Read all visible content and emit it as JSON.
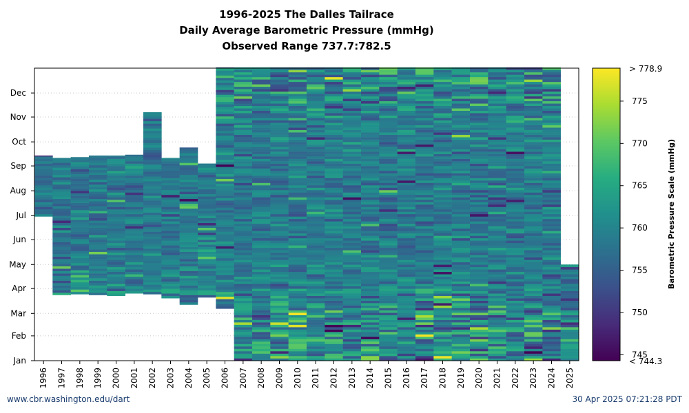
{
  "chart_data": {
    "type": "heatmap",
    "title": "1996-2025 The Dalles Tailrace",
    "subtitle": "Daily Average Barometric Pressure (mmHg)",
    "range_label": "Observed Range 737.7:782.5",
    "x_categories": [
      "1996",
      "1997",
      "1998",
      "1999",
      "2000",
      "2001",
      "2002",
      "2003",
      "2004",
      "2005",
      "2006",
      "2007",
      "2008",
      "2009",
      "2010",
      "2011",
      "2012",
      "2013",
      "2014",
      "2015",
      "2016",
      "2017",
      "2018",
      "2019",
      "2020",
      "2021",
      "2022",
      "2023",
      "2024",
      "2025"
    ],
    "y_ticks": [
      "Jan",
      "Feb",
      "Mar",
      "Apr",
      "May",
      "Jun",
      "Jul",
      "Aug",
      "Sep",
      "Oct",
      "Nov",
      "Dec"
    ],
    "y_tick_doy": [
      1,
      32,
      60,
      91,
      121,
      152,
      182,
      213,
      244,
      274,
      305,
      335
    ],
    "y_range": [
      1,
      366
    ],
    "grid": "horizontal dotted at month ticks",
    "coverage": [
      {
        "year": "1996",
        "start_doy": 181,
        "end_doy": 256
      },
      {
        "year": "1997",
        "start_doy": 83,
        "end_doy": 253
      },
      {
        "year": "1998",
        "start_doy": 84,
        "end_doy": 254
      },
      {
        "year": "1999",
        "start_doy": 83,
        "end_doy": 256
      },
      {
        "year": "2000",
        "start_doy": 82,
        "end_doy": 256
      },
      {
        "year": "2001",
        "start_doy": 85,
        "end_doy": 257
      },
      {
        "year": "2002",
        "start_doy": 84,
        "end_doy": 310
      },
      {
        "year": "2003",
        "start_doy": 79,
        "end_doy": 253
      },
      {
        "year": "2004",
        "start_doy": 71,
        "end_doy": 266
      },
      {
        "year": "2005",
        "start_doy": 80,
        "end_doy": 246
      },
      {
        "year": "2006",
        "start_doy": 66,
        "end_doy": 366
      },
      {
        "year": "2007",
        "start_doy": 1,
        "end_doy": 366
      },
      {
        "year": "2008",
        "start_doy": 1,
        "end_doy": 366
      },
      {
        "year": "2009",
        "start_doy": 1,
        "end_doy": 366
      },
      {
        "year": "2010",
        "start_doy": 1,
        "end_doy": 366
      },
      {
        "year": "2011",
        "start_doy": 1,
        "end_doy": 366
      },
      {
        "year": "2012",
        "start_doy": 1,
        "end_doy": 366
      },
      {
        "year": "2013",
        "start_doy": 1,
        "end_doy": 366
      },
      {
        "year": "2014",
        "start_doy": 1,
        "end_doy": 366
      },
      {
        "year": "2015",
        "start_doy": 1,
        "end_doy": 366
      },
      {
        "year": "2016",
        "start_doy": 1,
        "end_doy": 366
      },
      {
        "year": "2017",
        "start_doy": 1,
        "end_doy": 366
      },
      {
        "year": "2018",
        "start_doy": 1,
        "end_doy": 366
      },
      {
        "year": "2019",
        "start_doy": 1,
        "end_doy": 366
      },
      {
        "year": "2020",
        "start_doy": 1,
        "end_doy": 366
      },
      {
        "year": "2021",
        "start_doy": 1,
        "end_doy": 366
      },
      {
        "year": "2022",
        "start_doy": 1,
        "end_doy": 366
      },
      {
        "year": "2023",
        "start_doy": 1,
        "end_doy": 366
      },
      {
        "year": "2024",
        "start_doy": 1,
        "end_doy": 366
      },
      {
        "year": "2025",
        "start_doy": 1,
        "end_doy": 120
      }
    ],
    "colorbar": {
      "label": "Barometric Pressure Scale (mmHg)",
      "min": 744.3,
      "max": 778.9,
      "ticks": [
        745,
        750,
        755,
        760,
        765,
        770,
        775
      ],
      "min_label": "< 744.3",
      "max_label": "> 778.9",
      "colormap": "viridis"
    }
  },
  "footer": {
    "source": "www.cbr.washington.edu/dart",
    "timestamp": "30 Apr 2025 07:21:28 PDT"
  }
}
